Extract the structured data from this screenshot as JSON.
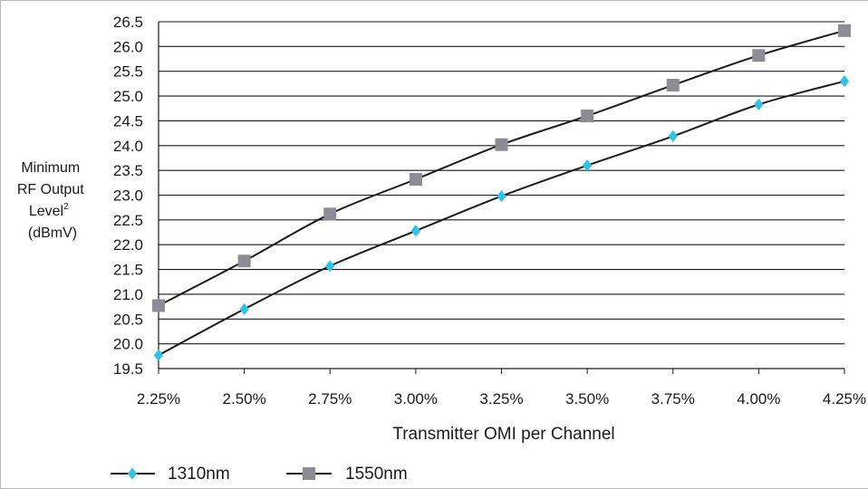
{
  "chart_data": {
    "type": "line",
    "title": "",
    "xlabel": "Transmitter OMI per Channel",
    "ylabel_lines": [
      "Minimum",
      "RF Output",
      "Level",
      "(dBmV)"
    ],
    "ylabel_superscript": "2",
    "categories": [
      "2.25%",
      "2.50%",
      "2.75%",
      "3.00%",
      "3.25%",
      "3.50%",
      "3.75%",
      "4.00%",
      "4.25%"
    ],
    "x": [
      2.25,
      2.5,
      2.75,
      3.0,
      3.25,
      3.5,
      3.75,
      4.0,
      4.25
    ],
    "ylim": [
      19.5,
      26.5
    ],
    "yticks": [
      "19.5",
      "20.0",
      "20.5",
      "21.0",
      "21.5",
      "22.0",
      "22.5",
      "23.0",
      "23.5",
      "24.0",
      "24.5",
      "25.0",
      "25.5",
      "26.0",
      "26.5"
    ],
    "grid": "horizontal",
    "legend_position": "bottom-left",
    "series": [
      {
        "name": "1310nm",
        "marker": "diamond",
        "color": "#2ec4e6",
        "line_color": "#1a1a1a",
        "values": [
          19.77,
          20.7,
          21.57,
          22.28,
          22.98,
          23.6,
          24.19,
          24.83,
          25.3
        ]
      },
      {
        "name": "1550nm",
        "marker": "square",
        "color": "#8c8c96",
        "line_color": "#1a1a1a",
        "values": [
          20.77,
          21.67,
          22.62,
          23.32,
          24.02,
          24.6,
          25.22,
          25.82,
          26.32
        ]
      }
    ]
  }
}
